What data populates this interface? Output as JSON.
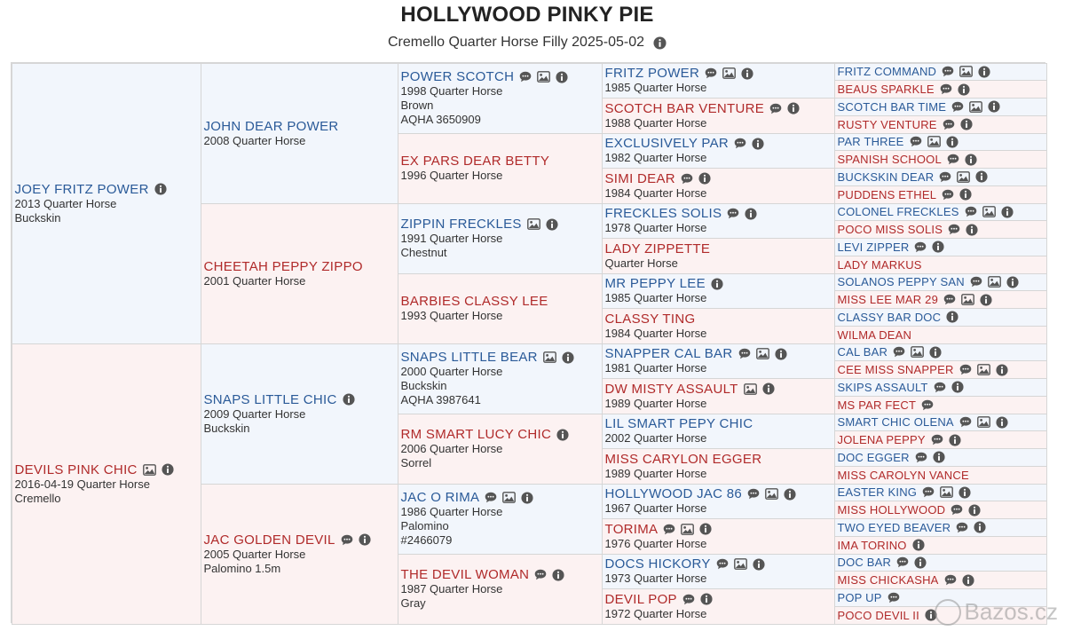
{
  "page": {
    "title": "HOLLYWOOD PINKY PIE",
    "subtitle": "Cremello Quarter Horse Filly 2025-05-02",
    "watermark": "Bazos.cz"
  },
  "colors": {
    "sire_name": "#2a5a98",
    "dam_name": "#b02a2a",
    "sire_bg": "#f2f6fc",
    "dam_bg": "#fcf2f2"
  },
  "pedigree": [
    {
      "gen": 1,
      "row": 1,
      "span": 16,
      "side": "sire",
      "name": "JOEY FRITZ POWER",
      "details": [
        "2013 Quarter Horse",
        "Buckskin"
      ],
      "icons": [
        "info"
      ]
    },
    {
      "gen": 1,
      "row": 17,
      "span": 16,
      "side": "dam",
      "name": "DEVILS PINK CHIC",
      "details": [
        "2016-04-19 Quarter Horse",
        "Cremello"
      ],
      "icons": [
        "photo",
        "info"
      ]
    },
    {
      "gen": 2,
      "row": 1,
      "span": 8,
      "side": "sire",
      "name": "JOHN DEAR POWER",
      "details": [
        "2008 Quarter Horse"
      ],
      "icons": []
    },
    {
      "gen": 2,
      "row": 9,
      "span": 8,
      "side": "dam",
      "name": "CHEETAH PEPPY ZIPPO",
      "details": [
        "2001 Quarter Horse"
      ],
      "icons": []
    },
    {
      "gen": 2,
      "row": 17,
      "span": 8,
      "side": "sire",
      "name": "SNAPS LITTLE CHIC",
      "details": [
        "2009 Quarter Horse",
        "Buckskin"
      ],
      "icons": [
        "info"
      ]
    },
    {
      "gen": 2,
      "row": 25,
      "span": 8,
      "side": "dam",
      "name": "JAC GOLDEN DEVIL",
      "details": [
        "2005 Quarter Horse",
        "Palomino 1.5m"
      ],
      "icons": [
        "comment",
        "info"
      ]
    },
    {
      "gen": 3,
      "row": 1,
      "span": 4,
      "side": "sire",
      "name": "POWER SCOTCH",
      "details": [
        "1998 Quarter Horse",
        "Brown",
        "AQHA 3650909"
      ],
      "icons": [
        "comment",
        "photo",
        "info"
      ]
    },
    {
      "gen": 3,
      "row": 5,
      "span": 4,
      "side": "dam",
      "name": "EX PARS DEAR BETTY",
      "details": [
        "1996 Quarter Horse"
      ],
      "icons": []
    },
    {
      "gen": 3,
      "row": 9,
      "span": 4,
      "side": "sire",
      "name": "ZIPPIN FRECKLES",
      "details": [
        "1991 Quarter Horse",
        "Chestnut"
      ],
      "icons": [
        "photo",
        "info"
      ]
    },
    {
      "gen": 3,
      "row": 13,
      "span": 4,
      "side": "dam",
      "name": "BARBIES CLASSY LEE",
      "details": [
        "1993 Quarter Horse"
      ],
      "icons": []
    },
    {
      "gen": 3,
      "row": 17,
      "span": 4,
      "side": "sire",
      "name": "SNAPS LITTLE BEAR",
      "details": [
        "2000 Quarter Horse",
        "Buckskin",
        "AQHA 3987641"
      ],
      "icons": [
        "photo",
        "info"
      ]
    },
    {
      "gen": 3,
      "row": 21,
      "span": 4,
      "side": "dam",
      "name": "RM SMART LUCY CHIC",
      "details": [
        "2006 Quarter Horse",
        "Sorrel"
      ],
      "icons": [
        "info"
      ]
    },
    {
      "gen": 3,
      "row": 25,
      "span": 4,
      "side": "sire",
      "name": "JAC O RIMA",
      "details": [
        "1986 Quarter Horse",
        "Palomino",
        "#2466079"
      ],
      "icons": [
        "comment",
        "photo",
        "info"
      ]
    },
    {
      "gen": 3,
      "row": 29,
      "span": 4,
      "side": "dam",
      "name": "THE DEVIL WOMAN",
      "details": [
        "1987 Quarter Horse",
        "Gray"
      ],
      "icons": [
        "comment",
        "info"
      ]
    },
    {
      "gen": 4,
      "row": 1,
      "span": 2,
      "side": "sire",
      "name": "FRITZ POWER",
      "details": [
        "1985 Quarter Horse"
      ],
      "icons": [
        "comment",
        "photo",
        "info"
      ]
    },
    {
      "gen": 4,
      "row": 3,
      "span": 2,
      "side": "dam",
      "name": "SCOTCH BAR VENTURE",
      "details": [
        "1988 Quarter Horse"
      ],
      "icons": [
        "comment",
        "info"
      ]
    },
    {
      "gen": 4,
      "row": 5,
      "span": 2,
      "side": "sire",
      "name": "EXCLUSIVELY PAR",
      "details": [
        "1982 Quarter Horse"
      ],
      "icons": [
        "comment",
        "info"
      ]
    },
    {
      "gen": 4,
      "row": 7,
      "span": 2,
      "side": "dam",
      "name": "SIMI DEAR",
      "details": [
        "1984 Quarter Horse"
      ],
      "icons": [
        "comment",
        "info"
      ]
    },
    {
      "gen": 4,
      "row": 9,
      "span": 2,
      "side": "sire",
      "name": "FRECKLES SOLIS",
      "details": [
        "1978 Quarter Horse"
      ],
      "icons": [
        "comment",
        "info"
      ]
    },
    {
      "gen": 4,
      "row": 11,
      "span": 2,
      "side": "dam",
      "name": "LADY ZIPPETTE",
      "details": [
        "Quarter Horse"
      ],
      "icons": []
    },
    {
      "gen": 4,
      "row": 13,
      "span": 2,
      "side": "sire",
      "name": "MR PEPPY LEE",
      "details": [
        "1985 Quarter Horse"
      ],
      "icons": [
        "info"
      ]
    },
    {
      "gen": 4,
      "row": 15,
      "span": 2,
      "side": "dam",
      "name": "CLASSY TING",
      "details": [
        "1984 Quarter Horse"
      ],
      "icons": []
    },
    {
      "gen": 4,
      "row": 17,
      "span": 2,
      "side": "sire",
      "name": "SNAPPER CAL BAR",
      "details": [
        "1981 Quarter Horse"
      ],
      "icons": [
        "comment",
        "photo",
        "info"
      ]
    },
    {
      "gen": 4,
      "row": 19,
      "span": 2,
      "side": "dam",
      "name": "DW MISTY ASSAULT",
      "details": [
        "1989 Quarter Horse"
      ],
      "icons": [
        "photo",
        "info"
      ]
    },
    {
      "gen": 4,
      "row": 21,
      "span": 2,
      "side": "sire",
      "name": "LIL SMART PEPY CHIC",
      "details": [
        "2002 Quarter Horse"
      ],
      "icons": []
    },
    {
      "gen": 4,
      "row": 23,
      "span": 2,
      "side": "dam",
      "name": "MISS CARYLON EGGER",
      "details": [
        "1989 Quarter Horse"
      ],
      "icons": []
    },
    {
      "gen": 4,
      "row": 25,
      "span": 2,
      "side": "sire",
      "name": "HOLLYWOOD JAC 86",
      "details": [
        "1967 Quarter Horse"
      ],
      "icons": [
        "comment",
        "photo",
        "info"
      ]
    },
    {
      "gen": 4,
      "row": 27,
      "span": 2,
      "side": "dam",
      "name": "TORIMA",
      "details": [
        "1976 Quarter Horse"
      ],
      "icons": [
        "comment",
        "photo",
        "info"
      ]
    },
    {
      "gen": 4,
      "row": 29,
      "span": 2,
      "side": "sire",
      "name": "DOCS HICKORY",
      "details": [
        "1973 Quarter Horse"
      ],
      "icons": [
        "comment",
        "photo",
        "info"
      ]
    },
    {
      "gen": 4,
      "row": 31,
      "span": 2,
      "side": "dam",
      "name": "DEVIL POP",
      "details": [
        "1972 Quarter Horse"
      ],
      "icons": [
        "comment",
        "info"
      ]
    },
    {
      "gen": 5,
      "row": 1,
      "span": 1,
      "side": "sire",
      "name": "FRITZ COMMAND",
      "details": [],
      "icons": [
        "comment",
        "photo",
        "info"
      ]
    },
    {
      "gen": 5,
      "row": 2,
      "span": 1,
      "side": "dam",
      "name": "BEAUS SPARKLE",
      "details": [],
      "icons": [
        "comment",
        "info"
      ]
    },
    {
      "gen": 5,
      "row": 3,
      "span": 1,
      "side": "sire",
      "name": "SCOTCH BAR TIME",
      "details": [],
      "icons": [
        "comment",
        "photo",
        "info"
      ]
    },
    {
      "gen": 5,
      "row": 4,
      "span": 1,
      "side": "dam",
      "name": "RUSTY VENTURE",
      "details": [],
      "icons": [
        "comment",
        "info"
      ]
    },
    {
      "gen": 5,
      "row": 5,
      "span": 1,
      "side": "sire",
      "name": "PAR THREE",
      "details": [],
      "icons": [
        "comment",
        "photo",
        "info"
      ]
    },
    {
      "gen": 5,
      "row": 6,
      "span": 1,
      "side": "dam",
      "name": "SPANISH SCHOOL",
      "details": [],
      "icons": [
        "comment",
        "info"
      ]
    },
    {
      "gen": 5,
      "row": 7,
      "span": 1,
      "side": "sire",
      "name": "BUCKSKIN DEAR",
      "details": [],
      "icons": [
        "comment",
        "photo",
        "info"
      ]
    },
    {
      "gen": 5,
      "row": 8,
      "span": 1,
      "side": "dam",
      "name": "PUDDENS ETHEL",
      "details": [],
      "icons": [
        "comment",
        "info"
      ]
    },
    {
      "gen": 5,
      "row": 9,
      "span": 1,
      "side": "sire",
      "name": "COLONEL FRECKLES",
      "details": [],
      "icons": [
        "comment",
        "photo",
        "info"
      ]
    },
    {
      "gen": 5,
      "row": 10,
      "span": 1,
      "side": "dam",
      "name": "POCO MISS SOLIS",
      "details": [],
      "icons": [
        "comment",
        "info"
      ]
    },
    {
      "gen": 5,
      "row": 11,
      "span": 1,
      "side": "sire",
      "name": "LEVI ZIPPER",
      "details": [],
      "icons": [
        "comment",
        "info"
      ]
    },
    {
      "gen": 5,
      "row": 12,
      "span": 1,
      "side": "dam",
      "name": "LADY MARKUS",
      "details": [],
      "icons": []
    },
    {
      "gen": 5,
      "row": 13,
      "span": 1,
      "side": "sire",
      "name": "SOLANOS PEPPY SAN",
      "details": [],
      "icons": [
        "comment",
        "photo",
        "info"
      ]
    },
    {
      "gen": 5,
      "row": 14,
      "span": 1,
      "side": "dam",
      "name": "MISS LEE MAR 29",
      "details": [],
      "icons": [
        "comment",
        "photo",
        "info"
      ]
    },
    {
      "gen": 5,
      "row": 15,
      "span": 1,
      "side": "sire",
      "name": "CLASSY BAR DOC",
      "details": [],
      "icons": [
        "info"
      ]
    },
    {
      "gen": 5,
      "row": 16,
      "span": 1,
      "side": "dam",
      "name": "WILMA DEAN",
      "details": [],
      "icons": []
    },
    {
      "gen": 5,
      "row": 17,
      "span": 1,
      "side": "sire",
      "name": "CAL BAR",
      "details": [],
      "icons": [
        "comment",
        "photo",
        "info"
      ]
    },
    {
      "gen": 5,
      "row": 18,
      "span": 1,
      "side": "dam",
      "name": "CEE MISS SNAPPER",
      "details": [],
      "icons": [
        "comment",
        "photo",
        "info"
      ]
    },
    {
      "gen": 5,
      "row": 19,
      "span": 1,
      "side": "sire",
      "name": "SKIPS ASSAULT",
      "details": [],
      "icons": [
        "comment",
        "info"
      ]
    },
    {
      "gen": 5,
      "row": 20,
      "span": 1,
      "side": "dam",
      "name": "MS PAR FECT",
      "details": [],
      "icons": [
        "comment"
      ]
    },
    {
      "gen": 5,
      "row": 21,
      "span": 1,
      "side": "sire",
      "name": "SMART CHIC OLENA",
      "details": [],
      "icons": [
        "comment",
        "photo",
        "info"
      ]
    },
    {
      "gen": 5,
      "row": 22,
      "span": 1,
      "side": "dam",
      "name": "JOLENA PEPPY",
      "details": [],
      "icons": [
        "comment",
        "info"
      ]
    },
    {
      "gen": 5,
      "row": 23,
      "span": 1,
      "side": "sire",
      "name": "DOC EGGER",
      "details": [],
      "icons": [
        "comment",
        "info"
      ]
    },
    {
      "gen": 5,
      "row": 24,
      "span": 1,
      "side": "dam",
      "name": "MISS CAROLYN VANCE",
      "details": [],
      "icons": []
    },
    {
      "gen": 5,
      "row": 25,
      "span": 1,
      "side": "sire",
      "name": "EASTER KING",
      "details": [],
      "icons": [
        "comment",
        "photo",
        "info"
      ]
    },
    {
      "gen": 5,
      "row": 26,
      "span": 1,
      "side": "dam",
      "name": "MISS HOLLYWOOD",
      "details": [],
      "icons": [
        "comment",
        "info"
      ]
    },
    {
      "gen": 5,
      "row": 27,
      "span": 1,
      "side": "sire",
      "name": "TWO EYED BEAVER",
      "details": [],
      "icons": [
        "comment",
        "info"
      ]
    },
    {
      "gen": 5,
      "row": 28,
      "span": 1,
      "side": "dam",
      "name": "IMA TORINO",
      "details": [],
      "icons": [
        "info"
      ]
    },
    {
      "gen": 5,
      "row": 29,
      "span": 1,
      "side": "sire",
      "name": "DOC BAR",
      "details": [],
      "icons": [
        "comment",
        "info"
      ]
    },
    {
      "gen": 5,
      "row": 30,
      "span": 1,
      "side": "dam",
      "name": "MISS CHICKASHA",
      "details": [],
      "icons": [
        "comment",
        "info"
      ]
    },
    {
      "gen": 5,
      "row": 31,
      "span": 1,
      "side": "sire",
      "name": "POP UP",
      "details": [],
      "icons": [
        "comment"
      ]
    },
    {
      "gen": 5,
      "row": 32,
      "span": 1,
      "side": "dam",
      "name": "POCO DEVIL II",
      "details": [],
      "icons": [
        "info"
      ]
    }
  ]
}
